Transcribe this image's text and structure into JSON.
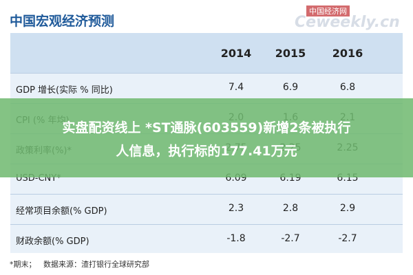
{
  "header": {
    "title": "中国宏观经济预测",
    "watermark": "中国经济网",
    "watermark_url": "Ceweekly.cn"
  },
  "table": {
    "columns": [
      "2014",
      "2015",
      "2016"
    ],
    "rows": [
      [
        "GDP 增长(实际 % 同比)",
        "7.4",
        "6.9",
        "6.8"
      ],
      [
        "CPI (% 年均)",
        "2.0",
        "1.6",
        "2.1"
      ],
      [
        "政策利率(%)*",
        "2.75",
        "2.25",
        "2.25"
      ],
      [
        "USD-CNY*",
        "6.09",
        "6.19",
        "6.15"
      ],
      [
        "经常项目余额(% GDP)",
        "2.3",
        "2.8",
        "2.9"
      ],
      [
        "财政余额(% GDP)",
        "-1.8",
        "-2.7",
        "-2.7"
      ]
    ]
  },
  "footer": {
    "note": "*期末；",
    "source": "数据来源：渣打银行全球研究部"
  },
  "banner": {
    "lines": [
      "实盘配资线上 *ST通脉(603559)新增2条被执行",
      "人信息，执行标的177.41万元"
    ]
  }
}
